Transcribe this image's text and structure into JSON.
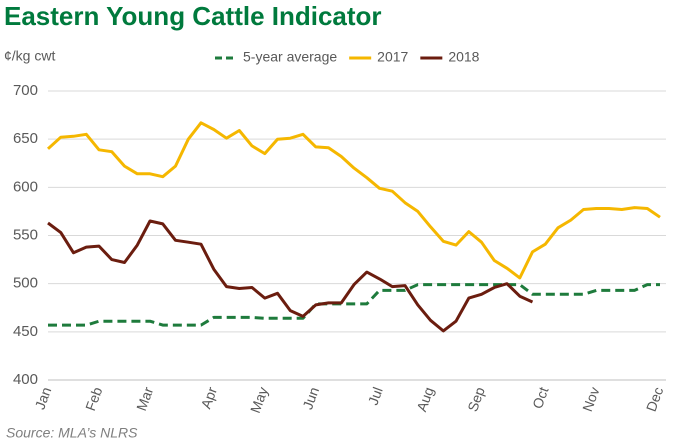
{
  "chart_data": {
    "type": "line",
    "title": "Eastern Young Cattle Indicator",
    "y_label": "¢/kg cwt",
    "source": "Source: MLA’s NLRS",
    "categories": [
      "Jan",
      null,
      null,
      null,
      "Feb",
      null,
      null,
      null,
      "Mar",
      null,
      null,
      null,
      null,
      "Apr",
      null,
      null,
      null,
      "May",
      null,
      null,
      null,
      "Jun",
      null,
      null,
      null,
      null,
      "Jul",
      null,
      null,
      null,
      "Aug",
      null,
      null,
      null,
      "Sep",
      null,
      null,
      null,
      null,
      "Oct",
      null,
      null,
      null,
      "Nov",
      null,
      null,
      null,
      null,
      "Dec"
    ],
    "series": [
      {
        "name": "5-year average",
        "color": "#1e7b3c",
        "dashed": true,
        "values": [
          457,
          457,
          457,
          457,
          461,
          461,
          461,
          461,
          461,
          457,
          457,
          457,
          457,
          465,
          465,
          465,
          465,
          464,
          464,
          464,
          464,
          479,
          479,
          479,
          479,
          479,
          493,
          493,
          493,
          499,
          499,
          499,
          499,
          499,
          499,
          499,
          499,
          499,
          489,
          489,
          489,
          489,
          489,
          493,
          493,
          493,
          493,
          499,
          499
        ]
      },
      {
        "name": "2017",
        "color": "#f5b700",
        "values": [
          640,
          652,
          653,
          655,
          639,
          637,
          622,
          614,
          614,
          611,
          622,
          650,
          667,
          660,
          651,
          659,
          643,
          635,
          650,
          651,
          655,
          642,
          641,
          632,
          620,
          610,
          599,
          596,
          584,
          575,
          559,
          544,
          540,
          554,
          543,
          524,
          516,
          506,
          533,
          541,
          558,
          566,
          577,
          578,
          578,
          577,
          579,
          578,
          569
        ]
      },
      {
        "name": "2018",
        "color": "#6b1d0f",
        "values": [
          563,
          553,
          532,
          538,
          539,
          525,
          522,
          540,
          565,
          562,
          545,
          543,
          541,
          515,
          497,
          495,
          496,
          485,
          490,
          472,
          466,
          478,
          480,
          480,
          499,
          512,
          505,
          497,
          498,
          478,
          462,
          451,
          461,
          485,
          489,
          496,
          500,
          487,
          481,
          null,
          null,
          null,
          null,
          null,
          null,
          null,
          null,
          null,
          null
        ]
      }
    ],
    "ylim": [
      400,
      700
    ],
    "yticks": [
      400,
      450,
      500,
      550,
      600,
      650,
      700
    ],
    "grid": true
  }
}
